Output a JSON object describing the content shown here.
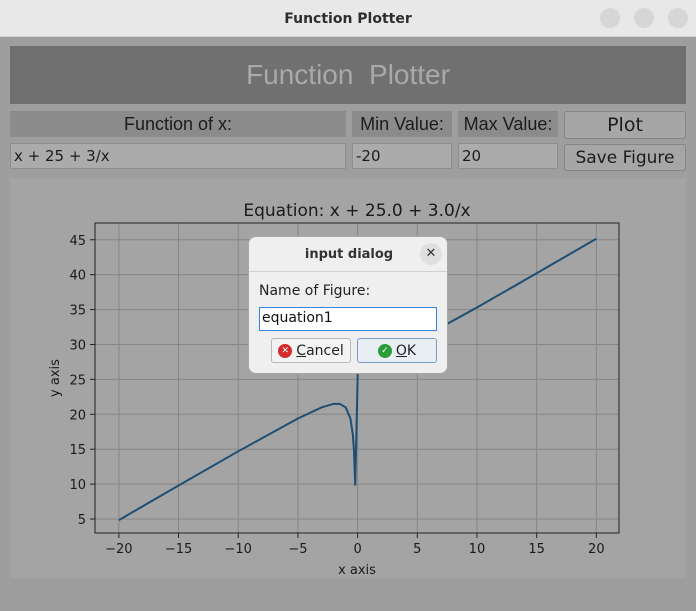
{
  "window": {
    "title": "Function Plotter"
  },
  "header": {
    "title": "Function  Plotter"
  },
  "form": {
    "function_label": "Function of x:",
    "min_label": "Min Value:",
    "max_label": "Max Value:",
    "function_value": "x + 25 + 3/x",
    "min_value": "-20",
    "max_value": "20",
    "plot_button": "Plot",
    "save_button": "Save Figure"
  },
  "chart_data": {
    "type": "line",
    "title": "Equation: x + 25.0 + 3.0/x",
    "x_label": "x axis",
    "y_label": "y axis",
    "x": [
      -20,
      -15,
      -10,
      -5,
      -3,
      -2,
      -1.5,
      -1,
      -0.6,
      -0.4,
      -0.3,
      -0.2,
      0.2,
      0.5,
      1,
      2,
      3,
      5,
      10,
      15,
      20
    ],
    "values": [
      4.85,
      9.8,
      14.7,
      19.4,
      21,
      21.5,
      21.5,
      21,
      19.4,
      17.1,
      14.7,
      9.8,
      40.2,
      31.5,
      29,
      28.5,
      29,
      30.6,
      35.3,
      40.2,
      45.15
    ],
    "color": "#1f4e73",
    "xlim": [
      -22,
      21.9
    ],
    "ylim": [
      3.0,
      47.4
    ],
    "xticks": [
      {
        "value": -20,
        "label": "−20"
      },
      {
        "value": -15,
        "label": "−15"
      },
      {
        "value": -10,
        "label": "−10"
      },
      {
        "value": -5,
        "label": "−5"
      },
      0,
      5,
      10,
      15,
      20
    ],
    "yticks": [
      5,
      10,
      15,
      20,
      25,
      30,
      35,
      40,
      45
    ],
    "grid": true
  },
  "dialog": {
    "title": "input dialog",
    "prompt": "Name of Figure:",
    "input": "equation1",
    "cancel": "Cancel",
    "ok": "OK"
  }
}
